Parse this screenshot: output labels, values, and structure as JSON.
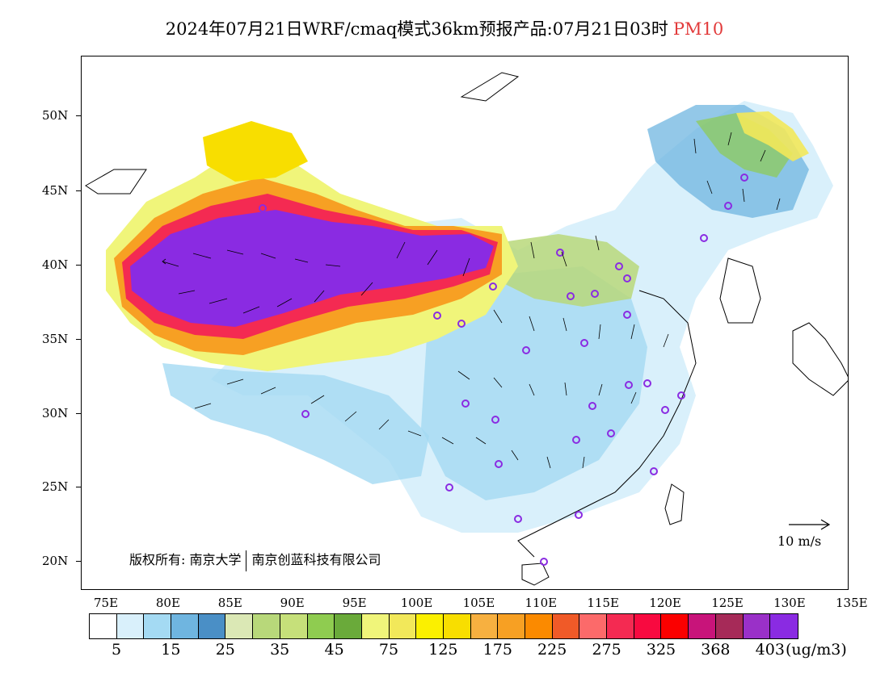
{
  "title": {
    "main": "2024年07月21日WRF/cmaq模式36km预报产品:07月21日03时",
    "variable": "PM10",
    "variable_color": "#e23b3b"
  },
  "axes": {
    "lat_labels": [
      "50N",
      "45N",
      "40N",
      "35N",
      "30N",
      "25N",
      "20N"
    ],
    "lon_labels": [
      "75E",
      "80E",
      "85E",
      "90E",
      "95E",
      "100E",
      "105E",
      "110E",
      "115E",
      "120E",
      "125E",
      "130E",
      "135E"
    ]
  },
  "colorbar": {
    "colors": [
      "#ffffff",
      "#d9f0fb",
      "#a4daf3",
      "#6fb5e0",
      "#4a8fc6",
      "#dbe8b5",
      "#b8d87a",
      "#c6e07a",
      "#8fcc50",
      "#6aaa3a",
      "#f0f57a",
      "#f2e85a",
      "#fbf000",
      "#f8de00",
      "#f7b040",
      "#f7a023",
      "#fb8a00",
      "#f05a28",
      "#fc6a6a",
      "#f42a52",
      "#f80a40",
      "#fb0000",
      "#c8147a",
      "#a62a58",
      "#9a30c8",
      "#8a2be2"
    ],
    "tick_labels": [
      "5",
      "15",
      "25",
      "35",
      "45",
      "75",
      "125",
      "175",
      "225",
      "275",
      "325",
      "368",
      "403"
    ],
    "unit": "(ug/m3)"
  },
  "copyright": {
    "prefix": "版权所有: 南京大学",
    "suffix": "南京创蓝科技有限公司"
  },
  "wind_reference": "10 m/s"
}
